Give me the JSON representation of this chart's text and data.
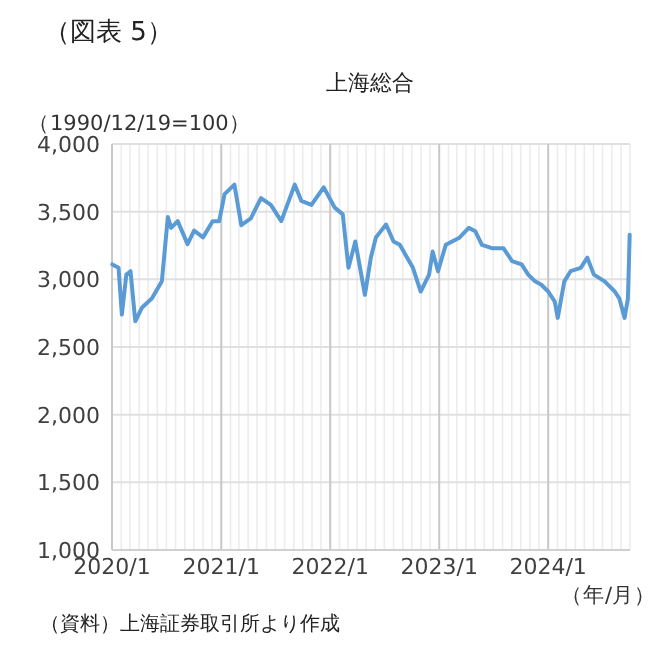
{
  "chart_data": {
    "type": "line",
    "title": "（図表 5）",
    "subtitle": "上海総合",
    "ylabel": "（1990/12/19=100）",
    "xlabel": "（年/月）",
    "annotations": [
      "（資料）上海証券取引所より作成"
    ],
    "xlim": [
      "2020-01-01",
      "2024-10-01"
    ],
    "ylim": [
      1000,
      4000
    ],
    "xticks": [
      {
        "value": "2020-01-01",
        "label": "2020/1"
      },
      {
        "value": "2021-01-01",
        "label": "2021/1"
      },
      {
        "value": "2022-01-01",
        "label": "2022/1"
      },
      {
        "value": "2023-01-01",
        "label": "2023/1"
      },
      {
        "value": "2024-01-01",
        "label": "2024/1"
      }
    ],
    "yticks": [
      {
        "value": 1000,
        "label": "1,000"
      },
      {
        "value": 1500,
        "label": "1,500"
      },
      {
        "value": 2000,
        "label": "2,000"
      },
      {
        "value": 2500,
        "label": "2,500"
      },
      {
        "value": 3000,
        "label": "3,000"
      },
      {
        "value": 3500,
        "label": "3,500"
      },
      {
        "value": 4000,
        "label": "4,000"
      }
    ],
    "grid": true,
    "series": [
      {
        "color": "#5b9bd5",
        "x": [
          "2020-01-02",
          "2020-01-23",
          "2020-02-03",
          "2020-02-18",
          "2020-03-03",
          "2020-03-19",
          "2020-04-10",
          "2020-05-14",
          "2020-06-16",
          "2020-07-06",
          "2020-07-17",
          "2020-08-08",
          "2020-09-10",
          "2020-10-02",
          "2020-11-01",
          "2020-12-03",
          "2020-12-25",
          "2021-01-12",
          "2021-02-14",
          "2021-03-09",
          "2021-04-10",
          "2021-05-14",
          "2021-06-16",
          "2021-07-21",
          "2021-09-04",
          "2021-09-26",
          "2021-10-30",
          "2021-12-10",
          "2022-01-16",
          "2022-02-12",
          "2022-03-03",
          "2022-03-26",
          "2022-04-27",
          "2022-05-17",
          "2022-06-03",
          "2022-07-07",
          "2022-08-01",
          "2022-08-22",
          "2022-10-05",
          "2022-10-31",
          "2022-11-28",
          "2022-12-10",
          "2022-12-28",
          "2023-01-23",
          "2023-03-08",
          "2023-04-10",
          "2023-05-02",
          "2023-05-24",
          "2023-06-26",
          "2023-08-04",
          "2023-09-02",
          "2023-10-04",
          "2023-10-26",
          "2023-11-18",
          "2023-12-09",
          "2024-01-01",
          "2024-01-23",
          "2024-02-02",
          "2024-02-24",
          "2024-03-16",
          "2024-04-19",
          "2024-05-11",
          "2024-06-02",
          "2024-07-08",
          "2024-08-11",
          "2024-08-26",
          "2024-09-13",
          "2024-09-24",
          "2024-09-30"
        ],
        "values": [
          3110,
          3085,
          2740,
          3035,
          3060,
          2690,
          2790,
          2860,
          2985,
          3460,
          3380,
          3430,
          3260,
          3360,
          3310,
          3430,
          3430,
          3630,
          3700,
          3400,
          3450,
          3600,
          3550,
          3430,
          3700,
          3580,
          3550,
          3680,
          3530,
          3480,
          3085,
          3280,
          2885,
          3160,
          3310,
          3405,
          3280,
          3255,
          3085,
          2910,
          3035,
          3205,
          3060,
          3255,
          3305,
          3380,
          3355,
          3255,
          3230,
          3230,
          3135,
          3110,
          3035,
          2985,
          2960,
          2910,
          2835,
          2715,
          2985,
          3060,
          3085,
          3160,
          3035,
          2985,
          2910,
          2860,
          2715,
          2860,
          3330
        ]
      }
    ]
  }
}
